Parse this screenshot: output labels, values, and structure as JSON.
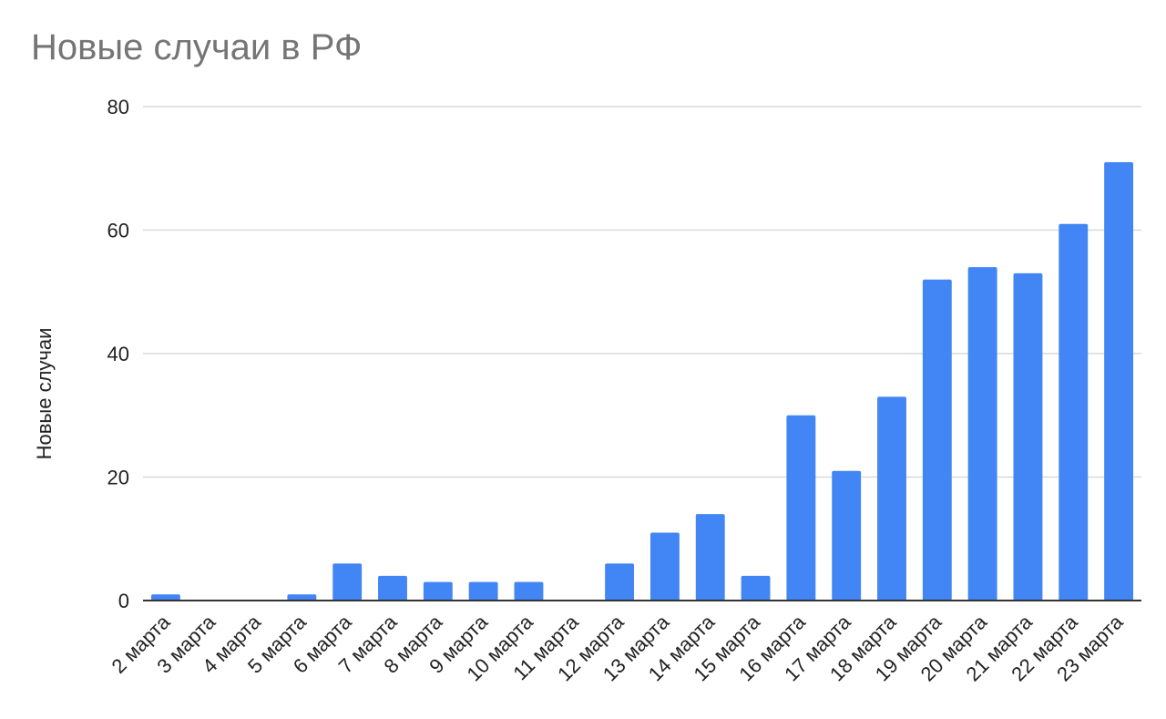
{
  "chart_data": {
    "type": "bar",
    "title": "Новые случаи в РФ",
    "xlabel": "",
    "ylabel": "Новые случаи",
    "ylim": [
      0,
      80
    ],
    "yticks": [
      0,
      20,
      40,
      60,
      80
    ],
    "grid": true,
    "bar_color": "#4285f4",
    "gridline_color": "#d9d9d9",
    "baseline_color": "#333333",
    "categories": [
      "2 марта",
      "3 марта",
      "4 марта",
      "5 марта",
      "6 марта",
      "7 марта",
      "8 марта",
      "9 марта",
      "10 марта",
      "11 марта",
      "12 марта",
      "13 марта",
      "14 марта",
      "15 марта",
      "16 марта",
      "17 марта",
      "18 марта",
      "19 марта",
      "20 марта",
      "21 марта",
      "22 марта",
      "23 марта"
    ],
    "values": [
      1,
      0,
      0,
      1,
      6,
      4,
      3,
      3,
      3,
      0,
      6,
      11,
      14,
      4,
      30,
      21,
      33,
      52,
      54,
      53,
      61,
      71
    ]
  }
}
